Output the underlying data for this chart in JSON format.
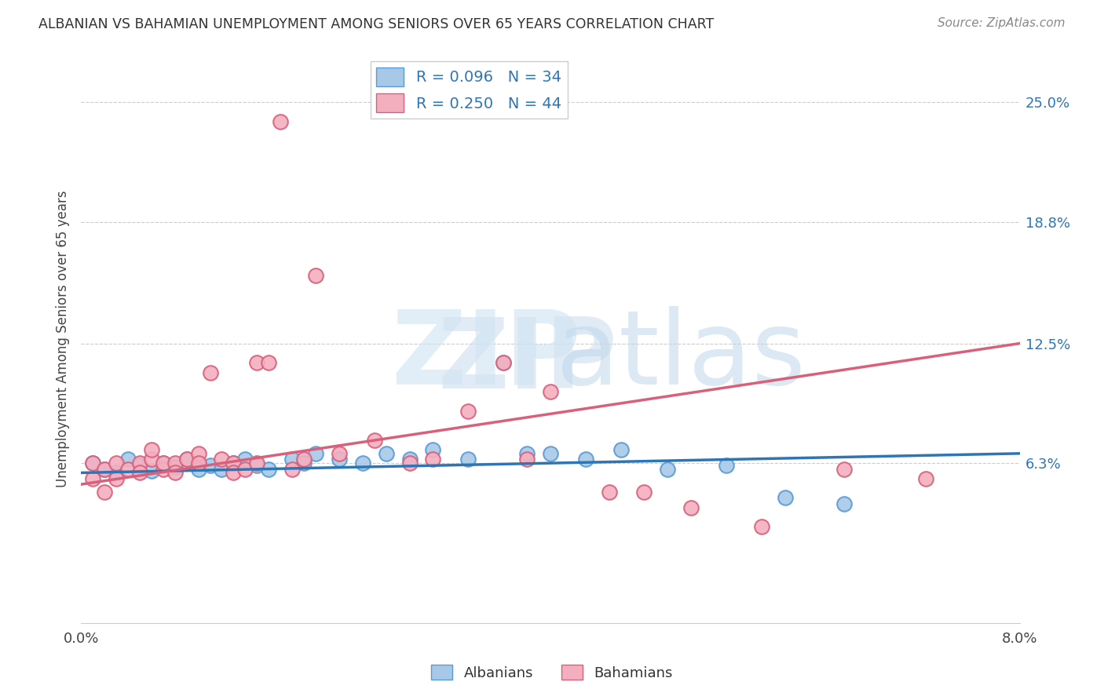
{
  "title": "ALBANIAN VS BAHAMIAN UNEMPLOYMENT AMONG SENIORS OVER 65 YEARS CORRELATION CHART",
  "source": "Source: ZipAtlas.com",
  "ylabel": "Unemployment Among Seniors over 65 years",
  "ytick_labels": [
    "25.0%",
    "18.8%",
    "12.5%",
    "6.3%"
  ],
  "ytick_values": [
    0.25,
    0.188,
    0.125,
    0.063
  ],
  "xlim": [
    0.0,
    0.08
  ],
  "ylim": [
    -0.02,
    0.275
  ],
  "albanian_color": "#A8C8E8",
  "albanian_edge": "#5B9BD5",
  "bahamian_color": "#F4AFBF",
  "bahamian_edge": "#D9607A",
  "albanian_R": 0.096,
  "albanian_N": 34,
  "bahamian_R": 0.25,
  "bahamian_N": 44,
  "albanian_line_color": "#2E75B6",
  "bahamian_line_color": "#D9607A",
  "legend_label_1": "Albanians",
  "legend_label_2": "Bahamians",
  "albanian_x": [
    0.001,
    0.002,
    0.003,
    0.004,
    0.005,
    0.006,
    0.007,
    0.008,
    0.009,
    0.01,
    0.011,
    0.012,
    0.013,
    0.014,
    0.015,
    0.016,
    0.018,
    0.019,
    0.02,
    0.022,
    0.024,
    0.026,
    0.028,
    0.03,
    0.033,
    0.036,
    0.038,
    0.04,
    0.043,
    0.046,
    0.05,
    0.055,
    0.06,
    0.065
  ],
  "albanian_y": [
    0.063,
    0.06,
    0.058,
    0.065,
    0.062,
    0.059,
    0.063,
    0.061,
    0.065,
    0.06,
    0.062,
    0.06,
    0.063,
    0.065,
    0.062,
    0.06,
    0.065,
    0.063,
    0.068,
    0.065,
    0.063,
    0.068,
    0.065,
    0.07,
    0.065,
    0.115,
    0.068,
    0.068,
    0.065,
    0.07,
    0.06,
    0.062,
    0.045,
    0.042
  ],
  "bahamian_x": [
    0.001,
    0.001,
    0.002,
    0.002,
    0.003,
    0.003,
    0.004,
    0.005,
    0.005,
    0.006,
    0.006,
    0.007,
    0.007,
    0.008,
    0.008,
    0.009,
    0.01,
    0.01,
    0.011,
    0.012,
    0.013,
    0.013,
    0.014,
    0.015,
    0.015,
    0.016,
    0.017,
    0.018,
    0.019,
    0.02,
    0.022,
    0.025,
    0.028,
    0.03,
    0.033,
    0.036,
    0.038,
    0.04,
    0.045,
    0.048,
    0.052,
    0.058,
    0.065,
    0.072
  ],
  "bahamian_y": [
    0.063,
    0.055,
    0.06,
    0.048,
    0.063,
    0.055,
    0.06,
    0.063,
    0.058,
    0.065,
    0.07,
    0.06,
    0.063,
    0.063,
    0.058,
    0.065,
    0.068,
    0.063,
    0.11,
    0.065,
    0.063,
    0.058,
    0.06,
    0.115,
    0.063,
    0.115,
    0.24,
    0.06,
    0.065,
    0.16,
    0.068,
    0.075,
    0.063,
    0.065,
    0.09,
    0.115,
    0.065,
    0.1,
    0.048,
    0.048,
    0.04,
    0.03,
    0.06,
    0.055
  ]
}
